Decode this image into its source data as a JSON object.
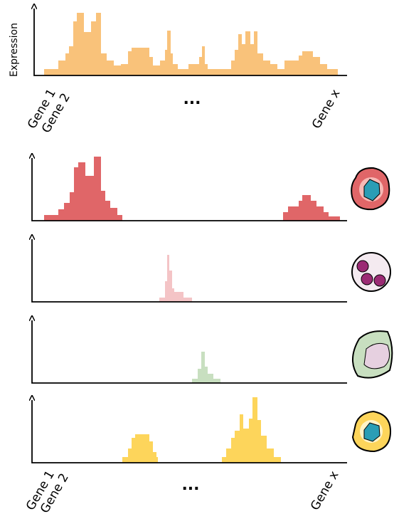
{
  "top_panel": {
    "y_axis_label": "Expression",
    "x_labels": [
      "Gene 1",
      "Gene 2",
      "...",
      "Gene x"
    ]
  },
  "bottom_labels": [
    "Gene 1",
    "Gene 2",
    "...",
    "Gene x"
  ]
}
